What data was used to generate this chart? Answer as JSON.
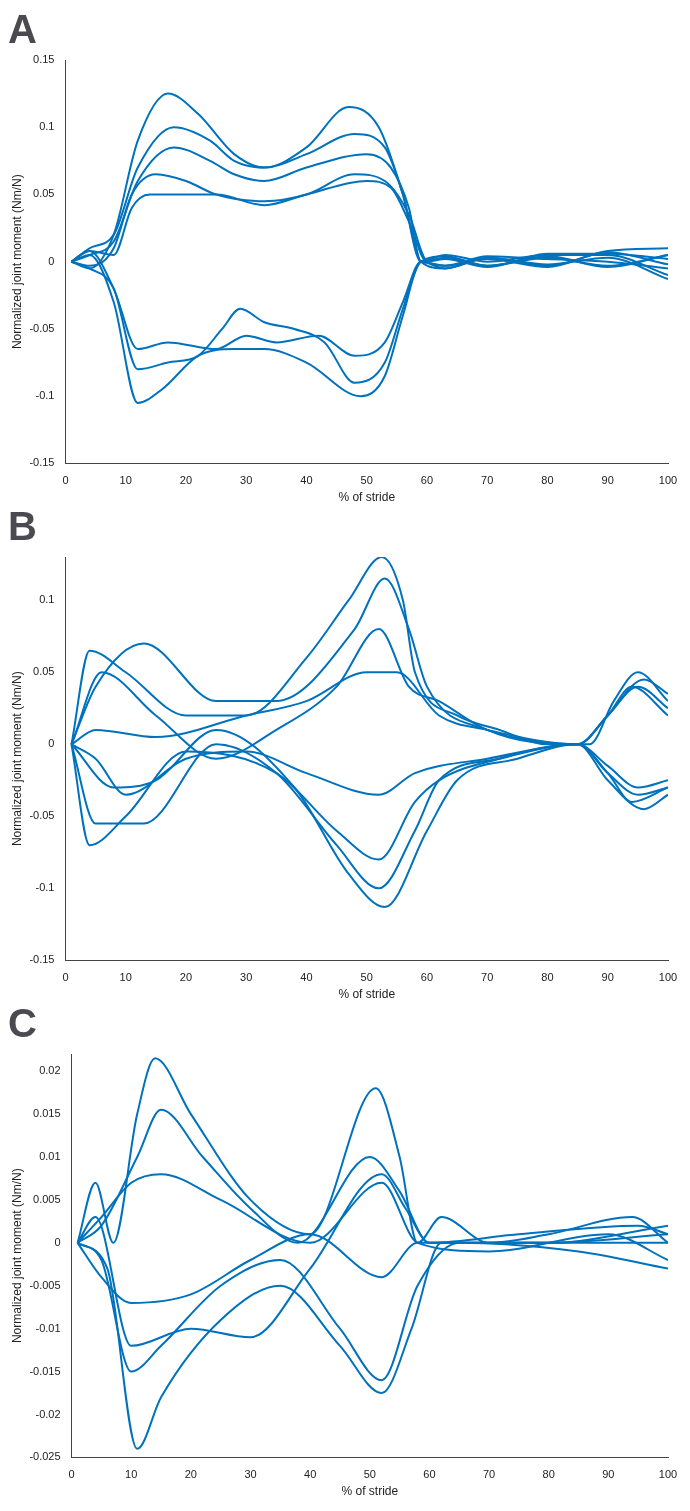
{
  "chart_data": [
    {
      "type": "line",
      "title": "A",
      "xlabel": "% of stride",
      "ylabel": "Normalized joint moment (Nm/N)",
      "xlim": [
        0,
        100
      ],
      "xticks": [
        0,
        10,
        20,
        30,
        40,
        50,
        60,
        70,
        80,
        90,
        100
      ],
      "ylim": [
        -0.15,
        0.15
      ],
      "yticks": [
        -0.15,
        -0.1,
        -0.05,
        0,
        0.05,
        0.1,
        0.15
      ],
      "series": [
        {
          "color": "#0072bd",
          "x": [
            1,
            4,
            8,
            12,
            17,
            22,
            28,
            33,
            40,
            47,
            52,
            56,
            59,
            63,
            70,
            80,
            90,
            100
          ],
          "values": [
            0,
            -0.005,
            0.02,
            0.09,
            0.125,
            0.11,
            0.08,
            0.07,
            0.085,
            0.115,
            0.1,
            0.05,
            0,
            0.005,
            0,
            0.005,
            0.005,
            -0.01
          ]
        },
        {
          "color": "#0072bd",
          "x": [
            1,
            4,
            8,
            12,
            18,
            24,
            28,
            33,
            40,
            48,
            53,
            56,
            59,
            63,
            70,
            80,
            90,
            100
          ],
          "values": [
            0,
            0.01,
            0.02,
            0.07,
            0.1,
            0.09,
            0.075,
            0.07,
            0.08,
            0.095,
            0.085,
            0.05,
            0,
            -0.005,
            0.003,
            -0.003,
            0.008,
            0.01
          ]
        },
        {
          "color": "#0072bd",
          "x": [
            1,
            4,
            8,
            12,
            18,
            24,
            28,
            33,
            40,
            50,
            54,
            57,
            59,
            63,
            70,
            80,
            90,
            100
          ],
          "values": [
            0,
            0.005,
            0.015,
            0.06,
            0.085,
            0.075,
            0.065,
            0.06,
            0.07,
            0.08,
            0.07,
            0.04,
            0,
            0.003,
            -0.003,
            0.004,
            -0.004,
            0.005
          ]
        },
        {
          "color": "#0072bd",
          "x": [
            1,
            4,
            8,
            11,
            15,
            20,
            25,
            33,
            40,
            48,
            53,
            57,
            60,
            63,
            70,
            80,
            90,
            100
          ],
          "values": [
            0,
            -0.003,
            0.01,
            0.05,
            0.065,
            0.06,
            0.05,
            0.045,
            0.05,
            0.065,
            0.06,
            0.035,
            0,
            -0.003,
            0.004,
            0.002,
            0,
            -0.005
          ]
        },
        {
          "color": "#0072bd",
          "x": [
            1,
            4,
            8,
            11,
            14,
            20,
            25,
            33,
            40,
            50,
            54,
            57,
            60,
            63,
            70,
            80,
            90,
            100
          ],
          "values": [
            0,
            0.008,
            0.005,
            0.04,
            0.05,
            0.05,
            0.05,
            0.042,
            0.05,
            0.06,
            0.055,
            0.03,
            0,
            0.002,
            -0.004,
            0.006,
            0.006,
            0.002
          ]
        },
        {
          "color": "#0072bd",
          "x": [
            1,
            4,
            8,
            12,
            16,
            22,
            28,
            33,
            40,
            49,
            53,
            56,
            59,
            63,
            70,
            80,
            90,
            100
          ],
          "values": [
            0,
            0.005,
            -0.03,
            -0.105,
            -0.095,
            -0.07,
            -0.065,
            -0.065,
            -0.075,
            -0.1,
            -0.085,
            -0.04,
            0,
            -0.005,
            0.003,
            -0.002,
            0.003,
            -0.013
          ]
        },
        {
          "color": "#0072bd",
          "x": [
            1,
            4,
            8,
            12,
            17,
            22,
            26,
            29,
            33,
            38,
            43,
            48,
            53,
            56,
            59,
            63,
            70,
            80,
            90,
            100
          ],
          "values": [
            0,
            -0.005,
            -0.02,
            -0.08,
            -0.075,
            -0.07,
            -0.05,
            -0.035,
            -0.045,
            -0.05,
            -0.06,
            -0.09,
            -0.075,
            -0.035,
            0,
            0.004,
            -0.003,
            0.003,
            -0.003,
            0.005
          ]
        },
        {
          "color": "#0072bd",
          "x": [
            1,
            4,
            8,
            12,
            17,
            25,
            30,
            35,
            42,
            48,
            53,
            56,
            59,
            63,
            70,
            80,
            90,
            100
          ],
          "values": [
            0,
            0.008,
            -0.02,
            -0.065,
            -0.06,
            -0.065,
            -0.055,
            -0.06,
            -0.055,
            -0.07,
            -0.06,
            -0.03,
            0,
            -0.003,
            0.002,
            -0.004,
            0.007,
            -0.002
          ]
        }
      ]
    },
    {
      "type": "line",
      "title": "B",
      "xlabel": "% of stride",
      "ylabel": "Normalized joint moment (Nm/N)",
      "xlim": [
        0,
        100
      ],
      "xticks": [
        0,
        10,
        20,
        30,
        40,
        50,
        60,
        70,
        80,
        90,
        100
      ],
      "ylim": [
        -0.15,
        0.13
      ],
      "yticks": [
        -0.15,
        -0.1,
        -0.05,
        0,
        0.05,
        0.1
      ],
      "series": [
        {
          "color": "#0072bd",
          "x": [
            1,
            4,
            10,
            20,
            30,
            40,
            47,
            52.5,
            56,
            58,
            65,
            72,
            80,
            87,
            91,
            95,
            100
          ],
          "values": [
            0,
            0.065,
            0.05,
            0.02,
            0.02,
            0.06,
            0.1,
            0.13,
            0.1,
            0.05,
            0.02,
            0.01,
            0,
            0,
            0.03,
            0.05,
            0.03
          ]
        },
        {
          "color": "#0072bd",
          "x": [
            1,
            5,
            13,
            25,
            35,
            48,
            53,
            57,
            60,
            70,
            85,
            90,
            96,
            100
          ],
          "values": [
            0,
            0.04,
            0.07,
            0.03,
            0.03,
            0.08,
            0.115,
            0.08,
            0.04,
            0.01,
            0,
            0.02,
            0.045,
            0.035
          ]
        },
        {
          "color": "#0072bd",
          "x": [
            1,
            6,
            15,
            25,
            35,
            45,
            52,
            57,
            62,
            70,
            85,
            90,
            95,
            100
          ],
          "values": [
            0,
            0.05,
            0.02,
            -0.01,
            0.01,
            0.04,
            0.08,
            0.04,
            0.03,
            0.01,
            0,
            0.02,
            0.04,
            0.025
          ]
        },
        {
          "color": "#0072bd",
          "x": [
            1,
            5,
            15,
            30,
            40,
            50,
            55,
            62,
            70,
            85,
            90,
            94,
            100
          ],
          "values": [
            0,
            0.01,
            0.005,
            0.02,
            0.03,
            0.05,
            0.05,
            0.02,
            0.01,
            0,
            0.02,
            0.04,
            0.02
          ]
        },
        {
          "color": "#0072bd",
          "x": [
            1,
            5,
            10,
            20,
            30,
            40,
            52,
            58,
            70,
            85,
            90,
            95,
            100
          ],
          "values": [
            0,
            -0.01,
            -0.035,
            -0.01,
            -0.005,
            -0.02,
            -0.035,
            -0.02,
            -0.01,
            0,
            -0.015,
            -0.03,
            -0.025
          ]
        },
        {
          "color": "#0072bd",
          "x": [
            1,
            4,
            10,
            20,
            35,
            45,
            52,
            58,
            62,
            72,
            85,
            90,
            95,
            100
          ],
          "values": [
            0,
            -0.07,
            -0.05,
            -0.005,
            -0.02,
            -0.06,
            -0.08,
            -0.04,
            -0.025,
            -0.01,
            0,
            -0.02,
            -0.035,
            -0.03
          ]
        },
        {
          "color": "#0072bd",
          "x": [
            1,
            5,
            13,
            25,
            35,
            45,
            52,
            58,
            62,
            72,
            85,
            90,
            96,
            100
          ],
          "values": [
            0,
            -0.055,
            -0.055,
            0,
            -0.02,
            -0.07,
            -0.1,
            -0.06,
            -0.025,
            -0.01,
            0,
            -0.025,
            -0.045,
            -0.035
          ]
        },
        {
          "color": "#0072bd",
          "x": [
            1,
            8,
            15,
            25,
            38,
            47,
            53,
            60,
            65,
            75,
            85,
            90,
            94,
            100
          ],
          "values": [
            0,
            -0.03,
            -0.025,
            0.01,
            -0.03,
            -0.09,
            -0.113,
            -0.06,
            -0.025,
            -0.01,
            0,
            -0.02,
            -0.04,
            -0.03
          ]
        }
      ]
    },
    {
      "type": "line",
      "title": "C",
      "xlabel": "% of stride",
      "ylabel": "Normalized joint moment (Nm/N)",
      "xlim": [
        0,
        100
      ],
      "xticks": [
        0,
        10,
        20,
        30,
        40,
        50,
        60,
        70,
        80,
        90,
        100
      ],
      "ylim": [
        -0.025,
        0.022
      ],
      "yticks": [
        -0.025,
        -0.02,
        -0.015,
        -0.01,
        -0.005,
        0,
        0.005,
        0.01,
        0.015,
        0.02
      ],
      "series": [
        {
          "color": "#0072bd",
          "x": [
            1,
            4,
            7,
            11,
            14,
            20,
            30,
            40,
            51,
            55,
            58,
            62,
            70,
            80,
            94,
            100
          ],
          "values": [
            0,
            0.007,
            0,
            0.015,
            0.0215,
            0.015,
            0.005,
            0.001,
            0.018,
            0.01,
            0,
            0.003,
            0,
            0.001,
            0.003,
            0
          ]
        },
        {
          "color": "#0072bd",
          "x": [
            1,
            5,
            11,
            15,
            22,
            30,
            38,
            50,
            55,
            60,
            75,
            95,
            100
          ],
          "values": [
            0,
            0.002,
            0.01,
            0.0155,
            0.01,
            0.004,
            0,
            0.01,
            0.006,
            0,
            0.001,
            0.002,
            0.001
          ]
        },
        {
          "color": "#0072bd",
          "x": [
            1,
            5,
            10,
            15,
            25,
            40,
            52,
            58,
            70,
            90,
            100
          ],
          "values": [
            0,
            0.003,
            0.007,
            0.008,
            0.005,
            0,
            0.007,
            0,
            -0.001,
            0.001,
            -0.002
          ]
        },
        {
          "color": "#0072bd",
          "x": [
            1,
            5,
            10,
            20,
            30,
            40,
            52,
            58,
            80,
            100
          ],
          "values": [
            0,
            -0.004,
            -0.007,
            -0.006,
            -0.002,
            0.001,
            -0.004,
            0,
            0,
            0.001
          ]
        },
        {
          "color": "#0072bd",
          "x": [
            1,
            5,
            10,
            15,
            25,
            35,
            45,
            52,
            58,
            65,
            85,
            100
          ],
          "values": [
            0,
            -0.002,
            -0.015,
            -0.012,
            -0.005,
            -0.002,
            -0.01,
            -0.016,
            -0.005,
            0,
            -0.001,
            -0.003
          ]
        },
        {
          "color": "#0072bd",
          "x": [
            1,
            6,
            11,
            15,
            25,
            35,
            45,
            52,
            57,
            62,
            80,
            100
          ],
          "values": [
            0,
            -0.003,
            -0.024,
            -0.018,
            -0.009,
            -0.005,
            -0.012,
            -0.0175,
            -0.01,
            0,
            0,
            0.002
          ]
        },
        {
          "color": "#0072bd",
          "x": [
            1,
            4,
            10,
            20,
            30,
            40,
            52,
            56,
            60,
            100
          ],
          "values": [
            0,
            0.003,
            -0.012,
            -0.01,
            -0.011,
            -0.003,
            0.008,
            0.004,
            0,
            0
          ]
        }
      ]
    }
  ]
}
